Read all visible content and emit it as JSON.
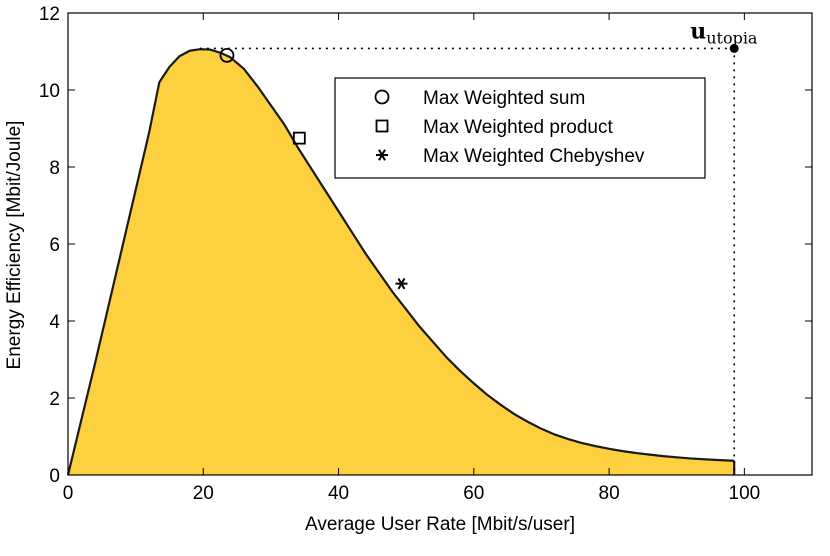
{
  "chart_data": {
    "type": "area",
    "title": "",
    "xlabel": "Average User Rate [Mbit/s/user]",
    "ylabel": "Energy Efficiency [Mbit/Joule]",
    "xlim": [
      0,
      110
    ],
    "ylim": [
      0,
      12
    ],
    "xticks": [
      0,
      20,
      40,
      60,
      80,
      100
    ],
    "yticks": [
      0,
      2,
      4,
      6,
      8,
      10,
      12
    ],
    "grid": false,
    "legend_position": "top-right",
    "fill_color": "#FCD03F",
    "line_color": "#1a1a1a",
    "frontier": {
      "x": [
        0,
        2,
        4,
        6,
        8,
        10,
        12,
        13.5,
        15,
        16.5,
        18,
        19.5,
        21,
        22.5,
        24,
        26,
        28,
        30,
        32,
        34,
        36,
        38,
        40,
        42,
        44,
        46,
        48,
        50,
        52,
        54,
        56,
        58,
        60,
        62,
        64,
        66,
        68,
        70,
        72,
        74,
        76,
        78,
        80,
        82,
        84,
        86,
        88,
        90,
        92,
        94,
        96,
        98.5
      ],
      "y": [
        0,
        1.45,
        2.9,
        4.4,
        5.9,
        7.4,
        8.9,
        10.2,
        10.6,
        10.88,
        11.02,
        11.06,
        11.05,
        10.97,
        10.85,
        10.55,
        10.1,
        9.6,
        9.1,
        8.5,
        7.95,
        7.4,
        6.85,
        6.3,
        5.75,
        5.25,
        4.75,
        4.3,
        3.85,
        3.45,
        3.05,
        2.7,
        2.38,
        2.08,
        1.82,
        1.58,
        1.38,
        1.2,
        1.05,
        0.93,
        0.83,
        0.75,
        0.68,
        0.62,
        0.57,
        0.53,
        0.49,
        0.46,
        0.43,
        0.41,
        0.39,
        0.37
      ]
    },
    "markers": [
      {
        "x": 23.5,
        "y": 10.9,
        "shape": "circle"
      },
      {
        "x": 34.2,
        "y": 8.75,
        "shape": "square"
      },
      {
        "x": 49.3,
        "y": 4.97,
        "shape": "asterisk"
      }
    ],
    "legend": [
      {
        "label": "Max Weighted sum",
        "shape": "circle"
      },
      {
        "label": "Max Weighted product",
        "shape": "square"
      },
      {
        "label": "Max Weighted Chebyshev",
        "shape": "asterisk"
      }
    ],
    "utopia": {
      "x": 98.5,
      "y": 11.08,
      "label_main": "u",
      "label_sub": "utopia"
    }
  }
}
